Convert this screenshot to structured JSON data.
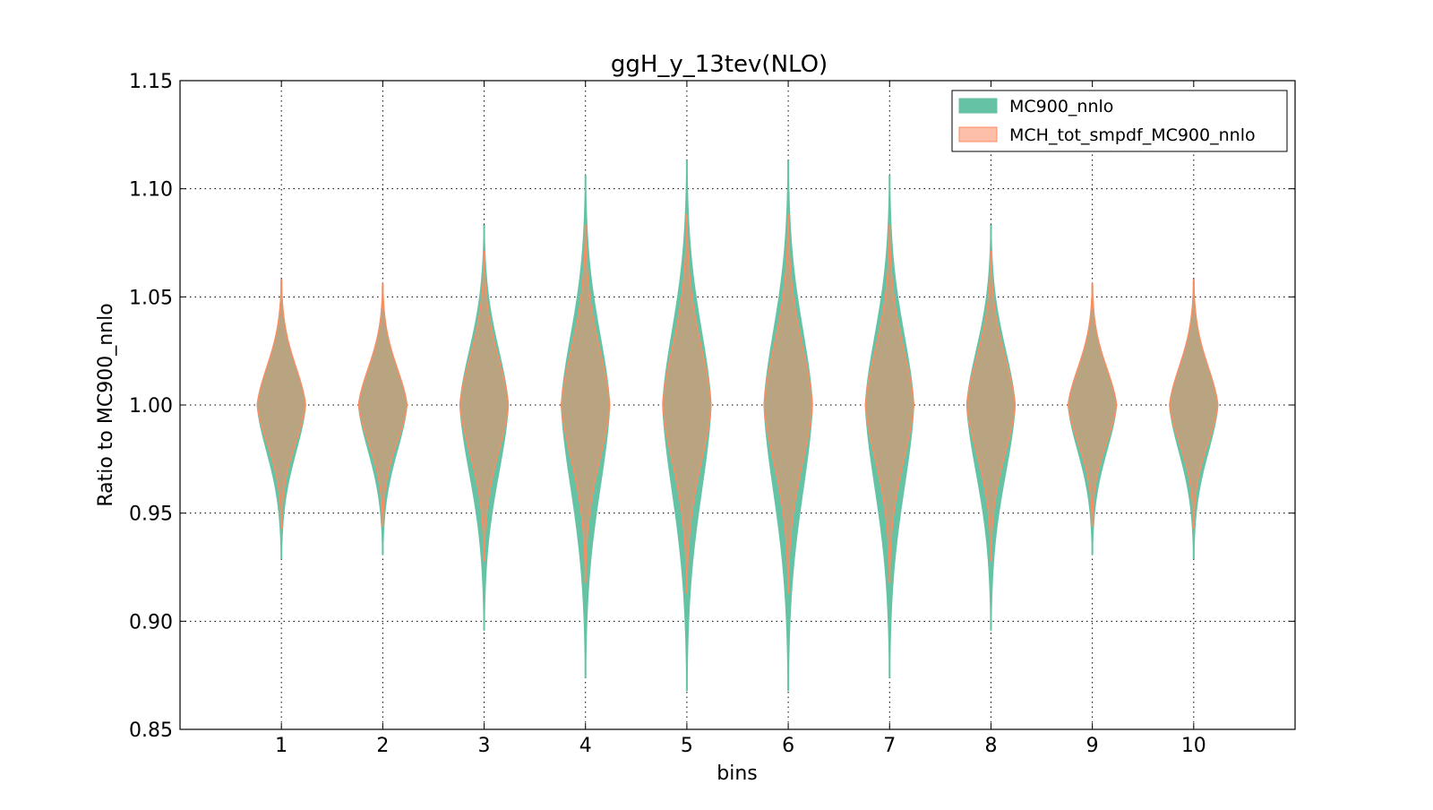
{
  "chart_data": {
    "type": "violin",
    "title": "ggH_y_13tev(NLO)",
    "xlabel": "bins",
    "ylabel": "Ratio to MC900_nnlo",
    "categories": [
      "1",
      "2",
      "3",
      "4",
      "5",
      "6",
      "7",
      "8",
      "9",
      "10"
    ],
    "xlim": [
      0,
      11
    ],
    "ylim": [
      0.85,
      1.15
    ],
    "yticks": [
      "0.85",
      "0.90",
      "0.95",
      "1.00",
      "1.05",
      "1.10",
      "1.15"
    ],
    "grid": true,
    "legend_position": "top-right",
    "series": [
      {
        "name": "MC900_nnlo",
        "color": "#66c2a5",
        "min": [
          0.929,
          0.931,
          0.896,
          0.874,
          0.868,
          0.868,
          0.874,
          0.896,
          0.931,
          0.929
        ],
        "max": [
          1.057,
          1.055,
          1.083,
          1.106,
          1.113,
          1.113,
          1.106,
          1.083,
          1.055,
          1.057
        ],
        "median": [
          1.0,
          1.0,
          1.0,
          1.0,
          1.0,
          1.0,
          1.0,
          1.0,
          1.0,
          1.0
        ]
      },
      {
        "name": "MCH_tot_smpdf_MC900_nnlo",
        "color": "#fc8d62",
        "min": [
          0.943,
          0.944,
          0.928,
          0.918,
          0.913,
          0.913,
          0.918,
          0.928,
          0.944,
          0.943
        ],
        "max": [
          1.058,
          1.056,
          1.071,
          1.083,
          1.088,
          1.088,
          1.083,
          1.071,
          1.056,
          1.058
        ],
        "median": [
          1.0,
          1.0,
          1.0,
          1.0,
          1.0,
          1.0,
          1.0,
          1.0,
          1.0,
          1.0
        ]
      }
    ]
  }
}
